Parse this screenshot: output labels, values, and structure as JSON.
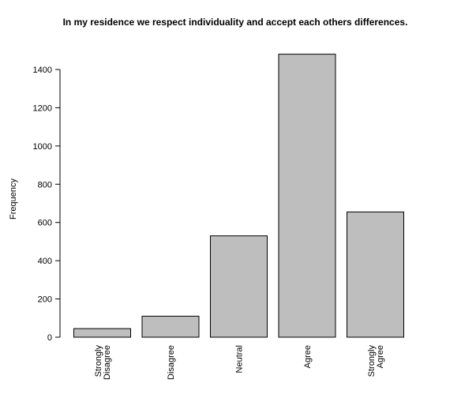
{
  "chart_data": {
    "type": "bar",
    "title": "In my residence we respect individuality and accept each others differences.",
    "xlabel": "",
    "ylabel": "Frequency",
    "categories": [
      [
        "Strongly",
        "Disagree"
      ],
      [
        "Disagree"
      ],
      [
        "Neutral"
      ],
      [
        "Agree"
      ],
      [
        "Strongly",
        "Agree"
      ]
    ],
    "values": [
      45,
      110,
      530,
      1480,
      655
    ],
    "ylim": [
      0,
      1400
    ],
    "yticks": [
      "0",
      "200",
      "400",
      "600",
      "800",
      "1000",
      "1200",
      "1400"
    ],
    "grid": false,
    "colors": {
      "bar_fill": "#bebebe",
      "bar_stroke": "#000000",
      "axis": "#000000"
    }
  }
}
